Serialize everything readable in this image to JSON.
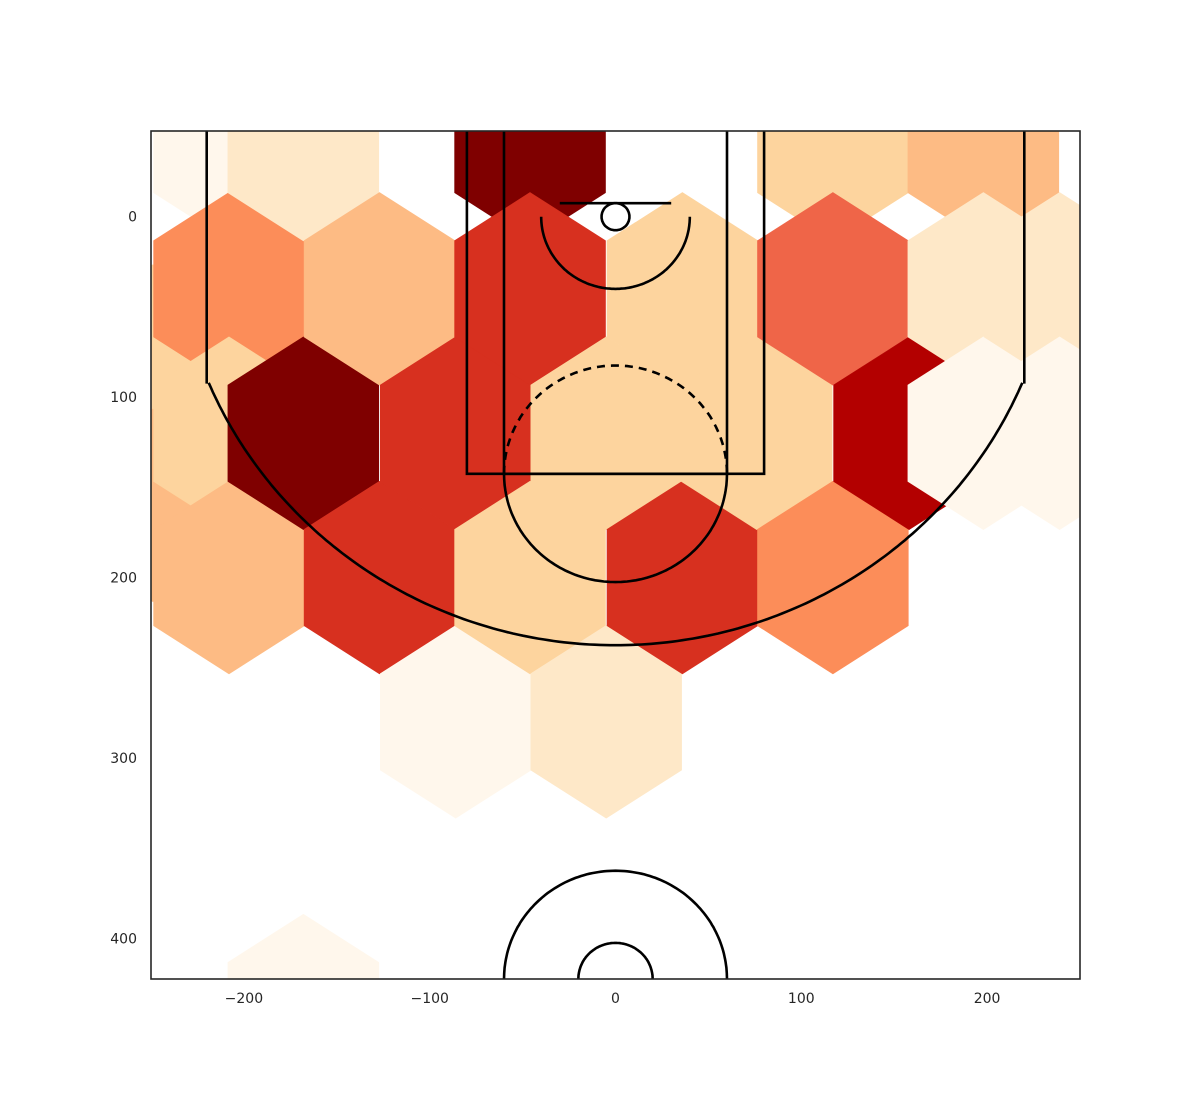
{
  "chart_data": {
    "type": "heatmap",
    "subtype": "hexbin",
    "title": "",
    "xlabel": "",
    "ylabel": "",
    "xlim": [
      -250,
      250
    ],
    "ylim": [
      422.5,
      -47.5
    ],
    "y_inverted": true,
    "grid": false,
    "legend": "none",
    "x_ticks": [
      -200,
      -100,
      0,
      100,
      200
    ],
    "x_tick_labels": [
      "−200",
      "−100",
      "0",
      "100",
      "200"
    ],
    "y_ticks": [
      0,
      100,
      200,
      300,
      400
    ],
    "y_tick_labels": [
      "0",
      "100",
      "200",
      "300",
      "400"
    ],
    "colormap": "OrRd",
    "color_scale": [
      "#fff7ec",
      "#fee8c8",
      "#fdd49e",
      "#fdbb84",
      "#fc8d59",
      "#ef6548",
      "#d7301f",
      "#b30000",
      "#7f0000"
    ],
    "value_range": [
      0,
      8
    ],
    "hex_bins": [
      {
        "x": -249,
        "y": 80,
        "value": 2
      },
      {
        "x": -249,
        "y": 160,
        "value": 3
      },
      {
        "x": -208,
        "y": -40,
        "value": 0
      },
      {
        "x": -208,
        "y": 40,
        "value": 4
      },
      {
        "x": -208,
        "y": 120,
        "value": 2
      },
      {
        "x": -208,
        "y": 200,
        "value": 3
      },
      {
        "x": -168,
        "y": -40,
        "value": 1
      },
      {
        "x": -168,
        "y": 120,
        "value": 8
      },
      {
        "x": -168,
        "y": 440,
        "value": 0
      },
      {
        "x": -127,
        "y": 40,
        "value": 3
      },
      {
        "x": -127,
        "y": 200,
        "value": 6
      },
      {
        "x": -86,
        "y": 120,
        "value": 6
      },
      {
        "x": -86,
        "y": 280,
        "value": 0
      },
      {
        "x": -46,
        "y": -40,
        "value": 8
      },
      {
        "x": -46,
        "y": 40,
        "value": 6
      },
      {
        "x": -46,
        "y": 200,
        "value": 2
      },
      {
        "x": -5,
        "y": 120,
        "value": 2
      },
      {
        "x": -5,
        "y": 280,
        "value": 1
      },
      {
        "x": 36,
        "y": 40,
        "value": 2
      },
      {
        "x": 36,
        "y": 200,
        "value": 6
      },
      {
        "x": 76,
        "y": 120,
        "value": 2
      },
      {
        "x": 117,
        "y": -40,
        "value": 2
      },
      {
        "x": 117,
        "y": 40,
        "value": 5
      },
      {
        "x": 117,
        "y": 200,
        "value": 4
      },
      {
        "x": 158,
        "y": 120,
        "value": 7
      },
      {
        "x": 198,
        "y": -40,
        "value": 3
      },
      {
        "x": 198,
        "y": 40,
        "value": 1
      },
      {
        "x": 198,
        "y": 120,
        "value": 0
      },
      {
        "x": 239,
        "y": 40,
        "value": 1
      },
      {
        "x": 239,
        "y": 120,
        "value": 0
      }
    ]
  }
}
